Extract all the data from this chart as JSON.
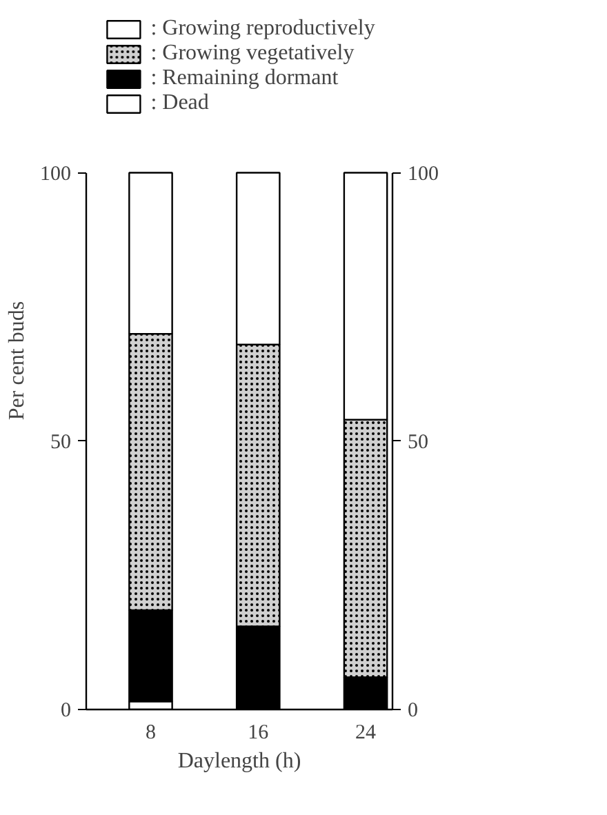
{
  "chart_data": {
    "type": "bar",
    "stacked": true,
    "xlabel": "Daylength (h)",
    "ylabel": "Per cent buds",
    "categories": [
      "8",
      "16",
      "24"
    ],
    "series": [
      {
        "name": ": Dead",
        "color": "#ffffff",
        "values": [
          1.5,
          0,
          0
        ]
      },
      {
        "name": ": Remaining dormant",
        "color": "#000000",
        "values": [
          17,
          15.5,
          6
        ]
      },
      {
        "name": ": Growing vegetatively",
        "color": "#d0d0d0",
        "values": [
          51.5,
          52.5,
          48
        ]
      },
      {
        "name": ": Growing reproductively",
        "color": "#ffffff",
        "values": [
          30,
          32,
          46
        ]
      }
    ],
    "ylim": [
      0,
      100
    ],
    "yticks": [
      0,
      50,
      100
    ],
    "y2lim": [
      0,
      100
    ],
    "y2ticks": [
      0,
      50,
      100
    ],
    "grid": false,
    "legend": "top"
  }
}
